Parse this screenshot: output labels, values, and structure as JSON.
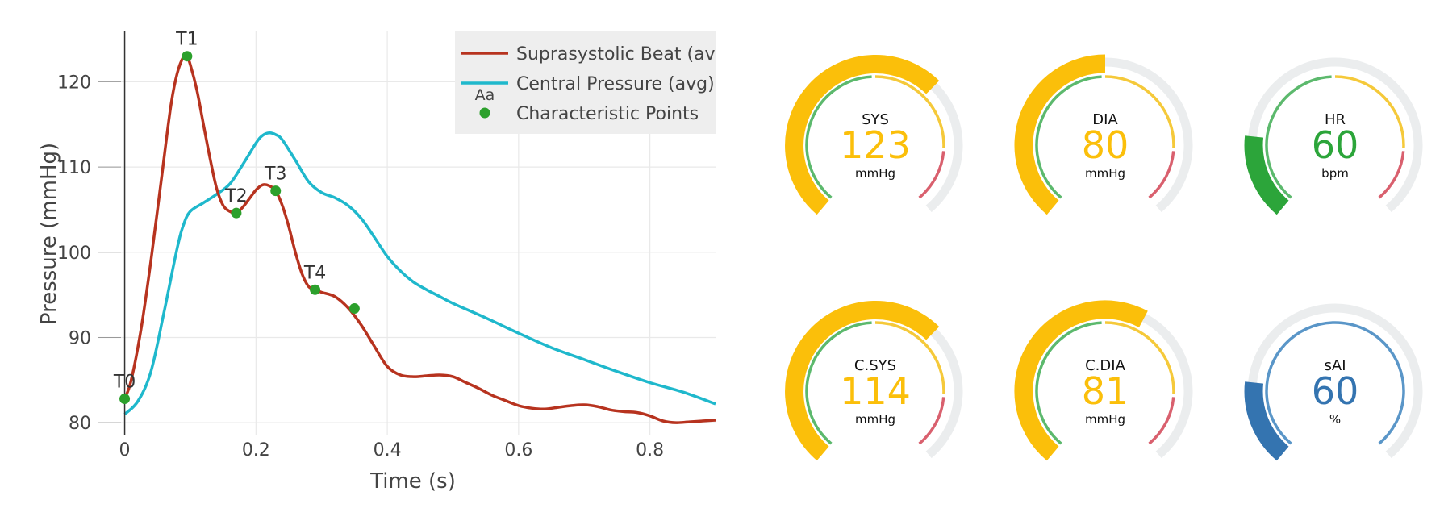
{
  "chart_data": [
    {
      "type": "line",
      "xlabel": "Time (s)",
      "ylabel": "Pressure (mmHg)",
      "xlim": [
        -0.04,
        0.9
      ],
      "ylim": [
        78.5,
        126
      ],
      "xticks": [
        0,
        0.2,
        0.4,
        0.6,
        0.8
      ],
      "xtick_labels": [
        "0",
        "0.2",
        "0.4",
        "0.6",
        "0.8"
      ],
      "yticks": [
        80,
        90,
        100,
        110,
        120
      ],
      "ytick_labels": [
        "80",
        "90",
        "100",
        "110",
        "120"
      ],
      "grid": true,
      "legend_position": "top-right",
      "legend_icon_text": "Aa",
      "series": [
        {
          "name": "Suprasystolic Beat (av",
          "color": "#b7331f",
          "x": [
            0,
            0.01,
            0.025,
            0.04,
            0.055,
            0.07,
            0.08,
            0.09,
            0.095,
            0.1,
            0.11,
            0.12,
            0.13,
            0.14,
            0.15,
            0.16,
            0.17,
            0.18,
            0.19,
            0.2,
            0.21,
            0.22,
            0.23,
            0.24,
            0.25,
            0.26,
            0.27,
            0.28,
            0.29,
            0.3,
            0.32,
            0.34,
            0.36,
            0.38,
            0.4,
            0.42,
            0.44,
            0.46,
            0.48,
            0.5,
            0.52,
            0.54,
            0.56,
            0.58,
            0.6,
            0.62,
            0.64,
            0.66,
            0.68,
            0.7,
            0.72,
            0.74,
            0.76,
            0.78,
            0.8,
            0.82,
            0.84,
            0.86,
            0.88,
            0.9
          ],
          "y": [
            82.8,
            85,
            91,
            99,
            108,
            117,
            121,
            123,
            123,
            122,
            119,
            115,
            111,
            107.5,
            105.5,
            104.8,
            104.6,
            105.3,
            106.3,
            107.3,
            107.9,
            107.8,
            107.2,
            105.5,
            103,
            100,
            97.5,
            96,
            95.6,
            95.3,
            94.8,
            93.5,
            91.5,
            89,
            86.6,
            85.6,
            85.4,
            85.5,
            85.6,
            85.4,
            84.7,
            84,
            83.2,
            82.6,
            82,
            81.7,
            81.6,
            81.8,
            82,
            82.1,
            81.9,
            81.5,
            81.3,
            81.2,
            80.8,
            80.2,
            80,
            80.1,
            80.2,
            80.3
          ]
        },
        {
          "name": "Central Pressure (avg)",
          "color": "#1fb8cc",
          "x": [
            0,
            0.02,
            0.04,
            0.06,
            0.08,
            0.09,
            0.1,
            0.12,
            0.14,
            0.16,
            0.18,
            0.2,
            0.21,
            0.22,
            0.23,
            0.24,
            0.26,
            0.28,
            0.3,
            0.32,
            0.34,
            0.36,
            0.38,
            0.4,
            0.42,
            0.44,
            0.46,
            0.48,
            0.5,
            0.55,
            0.6,
            0.65,
            0.7,
            0.75,
            0.8,
            0.85,
            0.9
          ],
          "y": [
            81,
            82.5,
            86,
            93,
            100.5,
            103.3,
            104.8,
            105.8,
            106.8,
            108,
            110.3,
            112.8,
            113.7,
            114,
            113.8,
            113.2,
            110.8,
            108.3,
            107,
            106.4,
            105.5,
            104,
            101.8,
            99.5,
            97.8,
            96.5,
            95.6,
            94.8,
            94,
            92.3,
            90.5,
            88.8,
            87.4,
            86,
            84.7,
            83.6,
            82.2
          ]
        },
        {
          "name": "Characteristic Points",
          "color": "#2ca02c",
          "type": "scatter",
          "points": [
            {
              "label": "T0",
              "x": 0,
              "y": 82.8
            },
            {
              "label": "T1",
              "x": 0.095,
              "y": 123
            },
            {
              "label": "T2",
              "x": 0.17,
              "y": 104.6
            },
            {
              "label": "T3",
              "x": 0.23,
              "y": 107.2
            },
            {
              "label": "T4",
              "x": 0.29,
              "y": 95.6
            },
            {
              "label": "",
              "x": 0.35,
              "y": 93.4
            }
          ]
        }
      ]
    },
    {
      "type": "gauge",
      "range_max": 100,
      "band_colors": {
        "green": "#5cb96d",
        "yellow": "#f5c93a",
        "red": "#d9606e",
        "track": "#ebedee"
      },
      "gauges": [
        {
          "key": "sys",
          "label": "SYS",
          "value": 123,
          "unit": "mmHg",
          "fill": 0.66,
          "color": "#fbbf0a"
        },
        {
          "key": "dia",
          "label": "DIA",
          "value": 80,
          "unit": "mmHg",
          "fill": 0.5,
          "color": "#fbbf0a"
        },
        {
          "key": "hr",
          "label": "HR",
          "value": 60,
          "unit": "bpm",
          "fill": 0.2,
          "color": "#2ca53a"
        },
        {
          "key": "csys",
          "label": "C.SYS",
          "value": 114,
          "unit": "mmHg",
          "fill": 0.66,
          "color": "#fbbf0a"
        },
        {
          "key": "cdia",
          "label": "C.DIA",
          "value": 81,
          "unit": "mmHg",
          "fill": 0.6,
          "color": "#fbbf0a"
        },
        {
          "key": "sai",
          "label": "sAI",
          "value": 60,
          "unit": "%",
          "fill": 0.2,
          "color": "#3474b0",
          "inner_color": "#5a96c8",
          "single_band": true
        }
      ]
    }
  ]
}
